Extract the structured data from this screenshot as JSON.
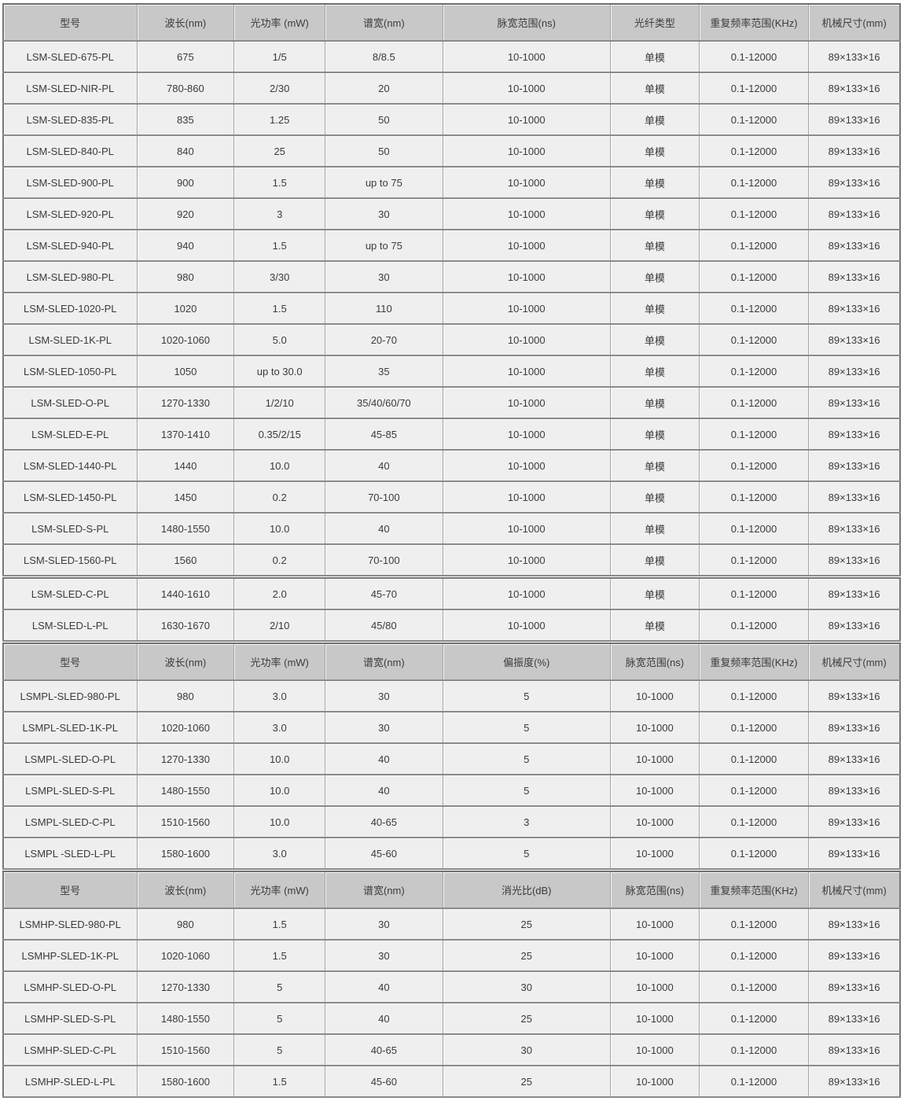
{
  "colors": {
    "header_bg": "#c8c8c8",
    "row_bg": "#efefef",
    "grid_line": "#8a8a8a",
    "grid_line_light": "#a4a4a4",
    "outer_border": "#767676",
    "text": "#3b3b3b"
  },
  "table": {
    "sections": [
      {
        "id": "single-mode-sled",
        "header": [
          "型号",
          "波长(nm)",
          "光功率 (mW)",
          "谱宽(nm)",
          "脉宽范围(ns)",
          "光纤类型",
          "重复频率范围(KHz)",
          "机械尺寸(mm)"
        ],
        "rows": [
          [
            "LSM-SLED-675-PL",
            "675",
            "1/5",
            "8/8.5",
            "10-1000",
            "单模",
            "0.1-12000",
            "89×133×16"
          ],
          [
            "LSM-SLED-NIR-PL",
            "780-860",
            "2/30",
            "20",
            "10-1000",
            "单模",
            "0.1-12000",
            "89×133×16"
          ],
          [
            "LSM-SLED-835-PL",
            "835",
            "1.25",
            "50",
            "10-1000",
            "单模",
            "0.1-12000",
            "89×133×16"
          ],
          [
            "LSM-SLED-840-PL",
            "840",
            "25",
            "50",
            "10-1000",
            "单模",
            "0.1-12000",
            "89×133×16"
          ],
          [
            "LSM-SLED-900-PL",
            "900",
            "1.5",
            "up to 75",
            "10-1000",
            "单模",
            "0.1-12000",
            "89×133×16"
          ],
          [
            "LSM-SLED-920-PL",
            "920",
            "3",
            "30",
            "10-1000",
            "单模",
            "0.1-12000",
            "89×133×16"
          ],
          [
            "LSM-SLED-940-PL",
            "940",
            "1.5",
            "up to 75",
            "10-1000",
            "单模",
            "0.1-12000",
            "89×133×16"
          ],
          [
            "LSM-SLED-980-PL",
            "980",
            "3/30",
            "30",
            "10-1000",
            "单模",
            "0.1-12000",
            "89×133×16"
          ],
          [
            "LSM-SLED-1020-PL",
            "1020",
            "1.5",
            "110",
            "10-1000",
            "单模",
            "0.1-12000",
            "89×133×16"
          ],
          [
            "LSM-SLED-1K-PL",
            "1020-1060",
            "5.0",
            "20-70",
            "10-1000",
            "单模",
            "0.1-12000",
            "89×133×16"
          ],
          [
            "LSM-SLED-1050-PL",
            "1050",
            "up to 30.0",
            "35",
            "10-1000",
            "单模",
            "0.1-12000",
            "89×133×16"
          ],
          [
            "LSM-SLED-O-PL",
            "1270-1330",
            "1/2/10",
            "35/40/60/70",
            "10-1000",
            "单模",
            "0.1-12000",
            "89×133×16"
          ],
          [
            "LSM-SLED-E-PL",
            "1370-1410",
            "0.35/2/15",
            "45-85",
            "10-1000",
            "单模",
            "0.1-12000",
            "89×133×16"
          ],
          [
            "LSM-SLED-1440-PL",
            "1440",
            "10.0",
            "40",
            "10-1000",
            "单模",
            "0.1-12000",
            "89×133×16"
          ],
          [
            "LSM-SLED-1450-PL",
            "1450",
            "0.2",
            "70-100",
            "10-1000",
            "单模",
            "0.1-12000",
            "89×133×16"
          ],
          [
            "LSM-SLED-S-PL",
            "1480-1550",
            "10.0",
            "40",
            "10-1000",
            "单模",
            "0.1-12000",
            "89×133×16"
          ],
          [
            "LSM-SLED-1560-PL",
            "1560",
            "0.2",
            "70-100",
            "10-1000",
            "单模",
            "0.1-12000",
            "89×133×16"
          ],
          [
            "LSM-SLED-C-PL",
            "1440-1610",
            "2.0",
            "45-70",
            "10-1000",
            "单模",
            "0.1-12000",
            "89×133×16"
          ],
          [
            "LSM-SLED-L-PL",
            "1630-1670",
            "2/10",
            "45/80",
            "10-1000",
            "单模",
            "0.1-12000",
            "89×133×16"
          ]
        ]
      },
      {
        "id": "polarized-sled",
        "header": [
          "型号",
          "波长(nm)",
          "光功率 (mW)",
          "谱宽(nm)",
          "偏振度(%)",
          "脉宽范围(ns)",
          "重复频率范围(KHz)",
          "机械尺寸(mm)"
        ],
        "rows": [
          [
            "LSMPL-SLED-980-PL",
            "980",
            "3.0",
            "30",
            "5",
            "10-1000",
            "0.1-12000",
            "89×133×16"
          ],
          [
            "LSMPL-SLED-1K-PL",
            "1020-1060",
            "3.0",
            "30",
            "5",
            "10-1000",
            "0.1-12000",
            "89×133×16"
          ],
          [
            "LSMPL-SLED-O-PL",
            "1270-1330",
            "10.0",
            "40",
            "5",
            "10-1000",
            "0.1-12000",
            "89×133×16"
          ],
          [
            "LSMPL-SLED-S-PL",
            "1480-1550",
            "10.0",
            "40",
            "5",
            "10-1000",
            "0.1-12000",
            "89×133×16"
          ],
          [
            "LSMPL-SLED-C-PL",
            "1510-1560",
            "10.0",
            "40-65",
            "3",
            "10-1000",
            "0.1-12000",
            "89×133×16"
          ],
          [
            "LSMPL -SLED-L-PL",
            "1580-1600",
            "3.0",
            "45-60",
            "5",
            "10-1000",
            "0.1-12000",
            "89×133×16"
          ]
        ]
      },
      {
        "id": "high-power-sled",
        "header": [
          "型号",
          "波长(nm)",
          "光功率 (mW)",
          "谱宽(nm)",
          "消光比(dB)",
          "脉宽范围(ns)",
          "重复频率范围(KHz)",
          "机械尺寸(mm)"
        ],
        "rows": [
          [
            "LSMHP-SLED-980-PL",
            "980",
            "1.5",
            "30",
            "25",
            "10-1000",
            "0.1-12000",
            "89×133×16"
          ],
          [
            "LSMHP-SLED-1K-PL",
            "1020-1060",
            "1.5",
            "30",
            "25",
            "10-1000",
            "0.1-12000",
            "89×133×16"
          ],
          [
            "LSMHP-SLED-O-PL",
            "1270-1330",
            "5",
            "40",
            "30",
            "10-1000",
            "0.1-12000",
            "89×133×16"
          ],
          [
            "LSMHP-SLED-S-PL",
            "1480-1550",
            "5",
            "40",
            "25",
            "10-1000",
            "0.1-12000",
            "89×133×16"
          ],
          [
            "LSMHP-SLED-C-PL",
            "1510-1560",
            "5",
            "40-65",
            "30",
            "10-1000",
            "0.1-12000",
            "89×133×16"
          ],
          [
            "LSMHP-SLED-L-PL",
            "1580-1600",
            "1.5",
            "45-60",
            "25",
            "10-1000",
            "0.1-12000",
            "89×133×16"
          ]
        ]
      }
    ]
  }
}
